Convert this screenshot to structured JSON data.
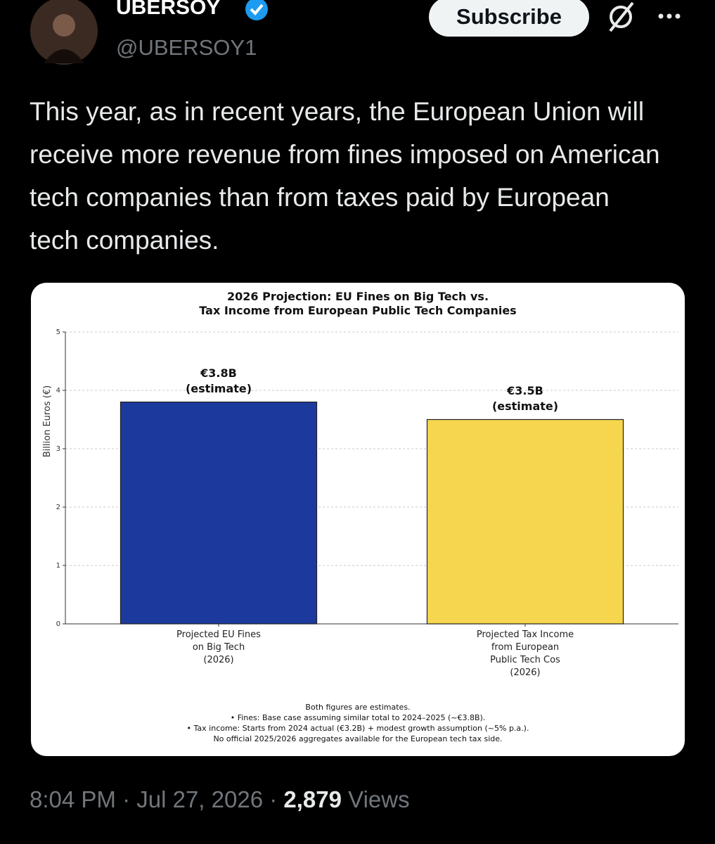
{
  "author": {
    "name": "UBERSOY",
    "handle": "@UBERSOY1"
  },
  "subscribe": "Subscribe",
  "text": "This year, as in recent years, the European Union will receive more revenue from fines imposed on American tech companies than from taxes paid by European tech companies.",
  "chart_data": {
    "type": "bar",
    "title": "2026 Projection: EU Fines on Big Tech vs.\nTax Income from European Public Tech Companies",
    "ylabel": "Billion Euros (€)",
    "categories": [
      "Projected EU Fines\non Big Tech\n(2026)",
      "Projected Tax Income\nfrom European\nPublic Tech Cos\n(2026)"
    ],
    "values": [
      3.8,
      3.5
    ],
    "value_labels": [
      "€3.8B\n(estimate)",
      "€3.5B\n(estimate)"
    ],
    "colors": [
      "#1c3a9e",
      "#f6d64f"
    ],
    "ylim": [
      0,
      5
    ],
    "yticks": [
      0,
      1,
      2,
      3,
      4,
      5
    ],
    "grid": true,
    "footnote": "Both figures are estimates.\n• Fines: Base case assuming similar total to 2024–2025 (~€3.8B).\n• Tax income: Starts from 2024 actual (€3.2B) + modest growth assumption (~5% p.a.).\nNo official 2025/2026 aggregates available for the European tech tax side."
  },
  "footer": {
    "time": "8:04 PM",
    "separator": "·",
    "date": "Jul 27, 2026",
    "views_count": "2,879",
    "views_label": "Views"
  }
}
